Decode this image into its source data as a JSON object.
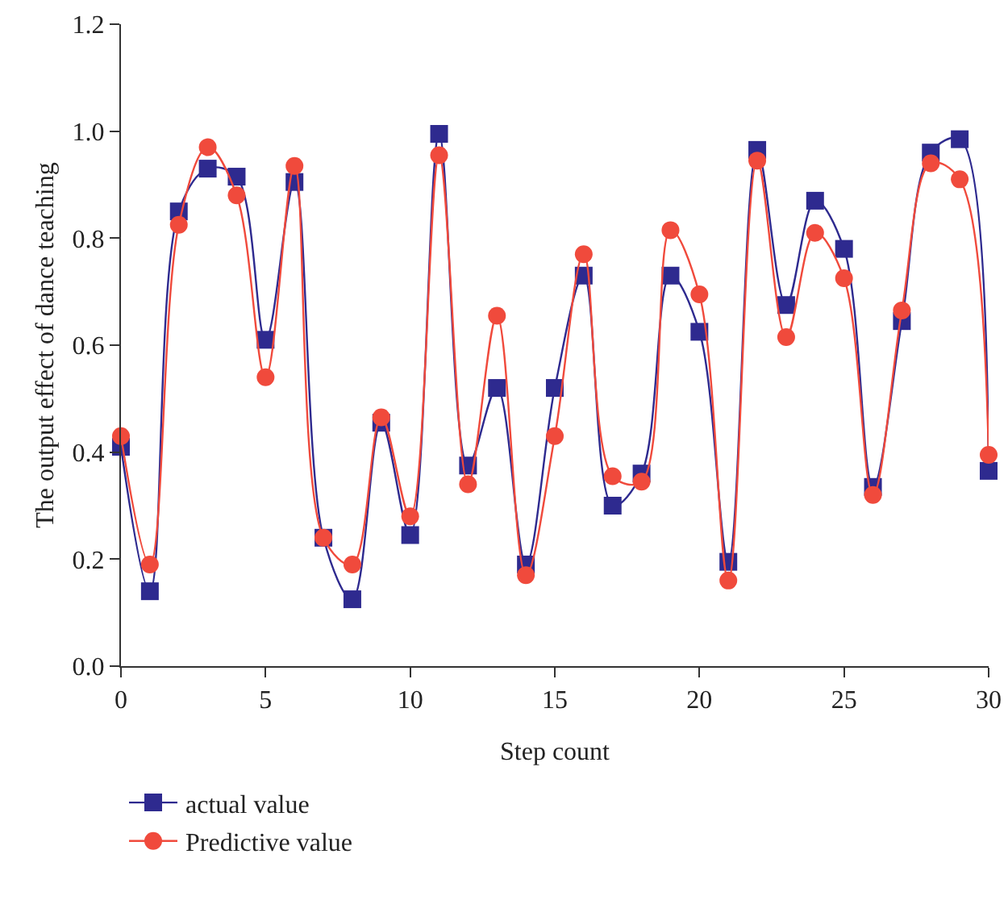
{
  "chart_data": {
    "type": "line",
    "xlabel": "Step count",
    "ylabel": "The output effect of dance teaching",
    "x": [
      0,
      1,
      2,
      3,
      4,
      5,
      6,
      7,
      8,
      9,
      10,
      11,
      12,
      13,
      14,
      15,
      16,
      17,
      18,
      19,
      20,
      21,
      22,
      23,
      24,
      25,
      26,
      27,
      28,
      29,
      30
    ],
    "series": [
      {
        "name": "actual value",
        "color": "#2e2a8f",
        "marker": "square",
        "values": [
          0.41,
          0.14,
          0.85,
          0.93,
          0.915,
          0.61,
          0.905,
          0.24,
          0.125,
          0.455,
          0.245,
          0.995,
          0.375,
          0.52,
          0.19,
          0.52,
          0.73,
          0.3,
          0.36,
          0.73,
          0.625,
          0.195,
          0.965,
          0.675,
          0.87,
          0.78,
          0.335,
          0.645,
          0.96,
          0.985,
          0.365
        ]
      },
      {
        "name": "Predictive value",
        "color": "#f04a3c",
        "marker": "circle",
        "values": [
          0.43,
          0.19,
          0.825,
          0.97,
          0.88,
          0.54,
          0.935,
          0.24,
          0.19,
          0.465,
          0.28,
          0.955,
          0.34,
          0.655,
          0.17,
          0.43,
          0.77,
          0.355,
          0.345,
          0.815,
          0.695,
          0.16,
          0.945,
          0.615,
          0.81,
          0.725,
          0.32,
          0.665,
          0.94,
          0.91,
          0.395
        ]
      }
    ],
    "xlim": [
      0,
      30
    ],
    "xticks": [
      0,
      5,
      10,
      15,
      20,
      25,
      30
    ],
    "ylim": [
      0,
      1.2
    ],
    "yticks": [
      {
        "value": 0,
        "label": "0.0"
      },
      {
        "value": 0.2,
        "label": "0.2"
      },
      {
        "value": 0.4,
        "label": "0.4"
      },
      {
        "value": 0.6,
        "label": "0.6"
      },
      {
        "value": 0.8,
        "label": "0.8"
      },
      {
        "value": 1,
        "label": "1.0"
      },
      {
        "value": 1.2,
        "label": "1.2"
      }
    ],
    "grid": false,
    "legend": "bottom left",
    "line_style": "solid"
  }
}
